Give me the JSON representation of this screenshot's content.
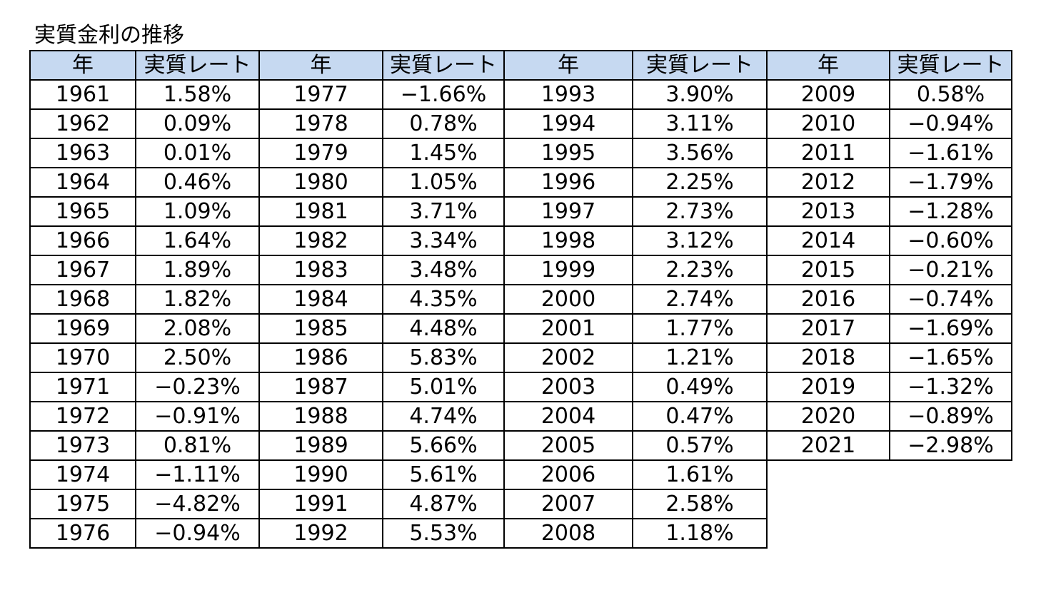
{
  "title": "実質金利の推移",
  "table": {
    "header": [
      "年",
      "実質レート",
      "年",
      "実質レート",
      "年",
      "実質レート",
      "年",
      "実質レート"
    ],
    "rows": [
      [
        "1961",
        "1.58%",
        "1977",
        "−1.66%",
        "1993",
        "3.90%",
        "2009",
        "0.58%"
      ],
      [
        "1962",
        "0.09%",
        "1978",
        "0.78%",
        "1994",
        "3.11%",
        "2010",
        "−0.94%"
      ],
      [
        "1963",
        "0.01%",
        "1979",
        "1.45%",
        "1995",
        "3.56%",
        "2011",
        "−1.61%"
      ],
      [
        "1964",
        "0.46%",
        "1980",
        "1.05%",
        "1996",
        "2.25%",
        "2012",
        "−1.79%"
      ],
      [
        "1965",
        "1.09%",
        "1981",
        "3.71%",
        "1997",
        "2.73%",
        "2013",
        "−1.28%"
      ],
      [
        "1966",
        "1.64%",
        "1982",
        "3.34%",
        "1998",
        "3.12%",
        "2014",
        "−0.60%"
      ],
      [
        "1967",
        "1.89%",
        "1983",
        "3.48%",
        "1999",
        "2.23%",
        "2015",
        "−0.21%"
      ],
      [
        "1968",
        "1.82%",
        "1984",
        "4.35%",
        "2000",
        "2.74%",
        "2016",
        "−0.74%"
      ],
      [
        "1969",
        "2.08%",
        "1985",
        "4.48%",
        "2001",
        "1.77%",
        "2017",
        "−1.69%"
      ],
      [
        "1970",
        "2.50%",
        "1986",
        "5.83%",
        "2002",
        "1.21%",
        "2018",
        "−1.65%"
      ],
      [
        "1971",
        "−0.23%",
        "1987",
        "5.01%",
        "2003",
        "0.49%",
        "2019",
        "−1.32%"
      ],
      [
        "1972",
        "−0.91%",
        "1988",
        "4.74%",
        "2004",
        "0.47%",
        "2020",
        "−0.89%"
      ],
      [
        "1973",
        "0.81%",
        "1989",
        "5.66%",
        "2005",
        "0.57%",
        "2021",
        "−2.98%"
      ],
      [
        "1974",
        "−1.11%",
        "1990",
        "5.61%",
        "2006",
        "1.61%",
        "",
        ""
      ],
      [
        "1975",
        "−4.82%",
        "1991",
        "4.87%",
        "2007",
        "2.58%",
        "",
        ""
      ],
      [
        "1976",
        "−0.94%",
        "1992",
        "5.53%",
        "2008",
        "1.18%",
        "",
        ""
      ]
    ]
  },
  "colors": {
    "header_bg": "#c6d9f1",
    "border": "#000000",
    "text": "#000000"
  }
}
